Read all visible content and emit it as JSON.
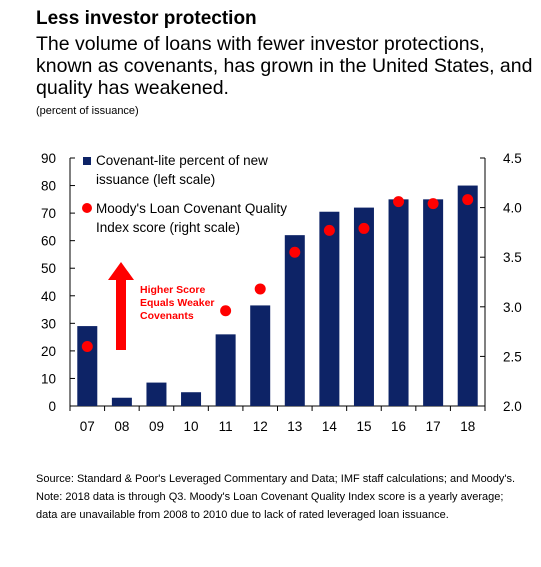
{
  "header": {
    "title": "Less investor protection",
    "subtitle": "The volume of loans with fewer investor protections, known as covenants, has grown in the United States, and quality has weakened.",
    "unit": "(percent of issuance)"
  },
  "chart_data": {
    "type": "bar",
    "categories": [
      "07",
      "08",
      "09",
      "10",
      "11",
      "12",
      "13",
      "14",
      "15",
      "16",
      "17",
      "18"
    ],
    "series": [
      {
        "name": "Covenant-lite percent of new issuance (left scale)",
        "type": "bar",
        "axis": "left",
        "color": "#0d2366",
        "values": [
          29,
          3,
          8.5,
          5,
          26,
          36.5,
          62,
          70.5,
          72,
          75,
          75,
          80
        ]
      },
      {
        "name": "Moody's Loan Covenant Quality Index score (right scale)",
        "type": "scatter",
        "axis": "right",
        "color": "#ff0000",
        "values": [
          2.6,
          null,
          null,
          null,
          2.96,
          3.18,
          3.55,
          3.77,
          3.79,
          4.06,
          4.04,
          4.08
        ]
      }
    ],
    "y_left": {
      "min": 0,
      "max": 90,
      "ticks": [
        0,
        10,
        20,
        30,
        40,
        50,
        60,
        70,
        80,
        90
      ]
    },
    "y_right": {
      "min": 2.0,
      "max": 4.5,
      "ticks": [
        "2.0",
        "2.5",
        "3.0",
        "3.5",
        "4.0",
        "4.5"
      ]
    },
    "legend_position": "top-right",
    "annotation": {
      "lines": [
        "Higher Score",
        "Equals Weaker",
        "Covenants"
      ],
      "color": "#ff0000",
      "arrow": "up"
    },
    "grid": false
  },
  "notes": {
    "source": "Source: Standard & Poor's Leveraged Commentary and Data; IMF staff calculations; and Moody's.",
    "note": "Note: 2018 data is through Q3. Moody's Loan Covenant Quality Index score is a yearly average; data are unavailable from 2008 to 2010 due to lack of rated leveraged loan issuance."
  }
}
